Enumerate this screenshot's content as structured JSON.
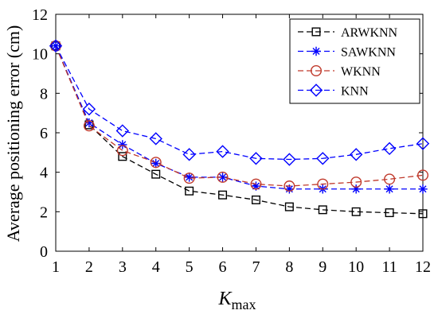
{
  "chart_data": {
    "type": "line",
    "title": "",
    "xlabel": "K",
    "xlabel_subscript": "max",
    "ylabel": "Average positioning error (cm)",
    "x": [
      1,
      2,
      3,
      4,
      5,
      6,
      7,
      8,
      9,
      10,
      11,
      12
    ],
    "xlim": [
      1,
      12
    ],
    "ylim": [
      0,
      12
    ],
    "xticks": [
      "1",
      "2",
      "3",
      "4",
      "5",
      "6",
      "7",
      "8",
      "9",
      "10",
      "11",
      "12"
    ],
    "yticks": [
      "0",
      "2",
      "4",
      "6",
      "8",
      "10",
      "12"
    ],
    "grid": false,
    "legend_position": "top-right",
    "series": [
      {
        "name": "ARWKNN",
        "color": "#000000",
        "marker": "square",
        "values": [
          10.4,
          6.4,
          4.8,
          3.9,
          3.05,
          2.85,
          2.6,
          2.25,
          2.1,
          2.0,
          1.95,
          1.9
        ]
      },
      {
        "name": "SAWKNN",
        "color": "#0000ff",
        "marker": "asterisk",
        "values": [
          10.4,
          6.5,
          5.4,
          4.45,
          3.75,
          3.75,
          3.3,
          3.15,
          3.15,
          3.15,
          3.15,
          3.15
        ]
      },
      {
        "name": "WKNN",
        "color": "#c0392b",
        "marker": "circle",
        "values": [
          10.4,
          6.35,
          5.1,
          4.5,
          3.7,
          3.75,
          3.4,
          3.3,
          3.4,
          3.5,
          3.65,
          3.85
        ]
      },
      {
        "name": "KNN",
        "color": "#0000ff",
        "marker": "diamond",
        "values": [
          10.4,
          7.2,
          6.1,
          5.7,
          4.9,
          5.05,
          4.7,
          4.65,
          4.7,
          4.9,
          5.2,
          5.45
        ]
      }
    ]
  }
}
